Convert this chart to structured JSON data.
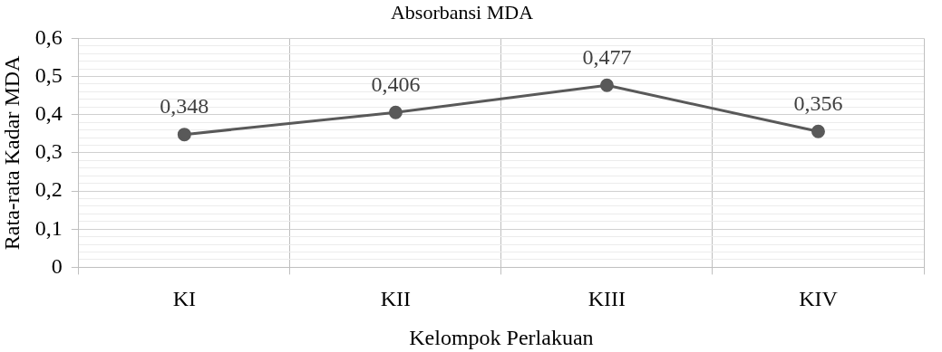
{
  "chart_data": {
    "type": "line",
    "title": "Absorbansi MDA",
    "xlabel": "Kelompok Perlakuan",
    "ylabel": "Rata-rata Kadar MDA",
    "categories": [
      "KI",
      "KII",
      "KIII",
      "KIV"
    ],
    "series": [
      {
        "color": "#595959",
        "values": [
          0.348,
          0.406,
          0.477,
          0.356
        ],
        "value_labels": [
          "0,348",
          "0,406",
          "0,477",
          "0,356"
        ]
      }
    ],
    "ylim": [
      0,
      0.6
    ],
    "yticks": [
      0,
      {
        "value": 0.02,
        "label": null
      },
      {
        "value": 0.04,
        "label": null
      },
      {
        "value": 0.06,
        "label": null
      },
      {
        "value": 0.08,
        "label": null
      },
      {
        "value": 0.1,
        "label": "0,1"
      },
      {
        "value": 0.12,
        "label": null
      },
      {
        "value": 0.14,
        "label": null
      },
      {
        "value": 0.16,
        "label": null
      },
      {
        "value": 0.18,
        "label": null
      },
      {
        "value": 0.2,
        "label": "0,2"
      },
      {
        "value": 0.22,
        "label": null
      },
      {
        "value": 0.24,
        "label": null
      },
      {
        "value": 0.26,
        "label": null
      },
      {
        "value": 0.28,
        "label": null
      },
      {
        "value": 0.3,
        "label": "0,3"
      },
      {
        "value": 0.32,
        "label": null
      },
      {
        "value": 0.34,
        "label": null
      },
      {
        "value": 0.36,
        "label": null
      },
      {
        "value": 0.38,
        "label": null
      },
      {
        "value": 0.4,
        "label": "0,4"
      },
      {
        "value": 0.42,
        "label": null
      },
      {
        "value": 0.44,
        "label": null
      },
      {
        "value": 0.46,
        "label": null
      },
      {
        "value": 0.48,
        "label": null
      },
      {
        "value": 0.5,
        "label": "0,5"
      },
      {
        "value": 0.52,
        "label": null
      },
      {
        "value": 0.54,
        "label": null
      },
      {
        "value": 0.56,
        "label": null
      },
      {
        "value": 0.58,
        "label": null
      },
      {
        "value": 0.6,
        "label": "0,6"
      }
    ],
    "grid": true,
    "legend": false,
    "marker": "circle",
    "line_style": "solid"
  }
}
